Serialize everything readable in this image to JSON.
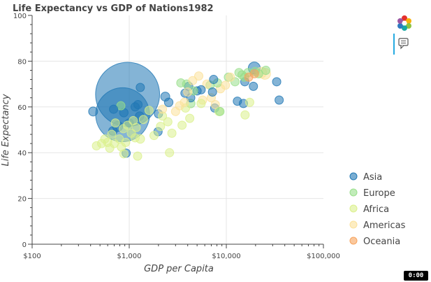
{
  "chart_data": {
    "type": "scatter",
    "title": "Life Expectancy vs GDP of Nations1982",
    "xlabel": "GDP per Capita",
    "ylabel": "Life Expectancy",
    "x_scale": "log",
    "xlim": [
      100,
      100000
    ],
    "ylim": [
      0,
      100
    ],
    "x_ticks": [
      100,
      1000,
      10000,
      100000
    ],
    "x_tick_labels": [
      "$100",
      "$1,000",
      "$10,000",
      "$100,000"
    ],
    "y_ticks": [
      0,
      20,
      40,
      60,
      80,
      100
    ],
    "y_tick_labels": [
      "0",
      "20",
      "40",
      "60",
      "80",
      "100"
    ],
    "grid": true,
    "legend_position": "right",
    "colors": {
      "Asia": "#1f77b4",
      "Europe": "#98df8a",
      "Africa": "#dbf08c",
      "Americas": "#fbe19a",
      "Oceania": "#f7a35c"
    },
    "series": [
      {
        "name": "Asia",
        "points": [
          {
            "gdp": 962,
            "life": 65.5,
            "pop": 1000
          },
          {
            "gdp": 855,
            "life": 56.6,
            "pop": 708
          },
          {
            "gdp": 425,
            "life": 58.0,
            "pop": 20
          },
          {
            "gdp": 690,
            "life": 59.0,
            "pop": 10
          },
          {
            "gdp": 760,
            "life": 51.5,
            "pop": 25
          },
          {
            "gdp": 680,
            "life": 49.5,
            "pop": 18
          },
          {
            "gdp": 930,
            "life": 39.8,
            "pop": 12
          },
          {
            "gdp": 880,
            "life": 57.5,
            "pop": 18
          },
          {
            "gdp": 1000,
            "life": 53.0,
            "pop": 12
          },
          {
            "gdp": 1150,
            "life": 60.0,
            "pop": 15
          },
          {
            "gdp": 1230,
            "life": 61.0,
            "pop": 14
          },
          {
            "gdp": 1280,
            "life": 56.0,
            "pop": 18
          },
          {
            "gdp": 1300,
            "life": 68.5,
            "pop": 15
          },
          {
            "gdp": 2000,
            "life": 57.0,
            "pop": 12
          },
          {
            "gdp": 1980,
            "life": 49.2,
            "pop": 12
          },
          {
            "gdp": 2350,
            "life": 64.5,
            "pop": 20
          },
          {
            "gdp": 2550,
            "life": 62.0,
            "pop": 18
          },
          {
            "gdp": 3750,
            "life": 66.0,
            "pop": 14
          },
          {
            "gdp": 4100,
            "life": 69.0,
            "pop": 15
          },
          {
            "gdp": 4300,
            "life": 64.0,
            "pop": 14
          },
          {
            "gdp": 5000,
            "life": 67.0,
            "pop": 15
          },
          {
            "gdp": 5500,
            "life": 67.5,
            "pop": 13
          },
          {
            "gdp": 7200,
            "life": 66.5,
            "pop": 10
          },
          {
            "gdp": 7600,
            "life": 59.5,
            "pop": 14
          },
          {
            "gdp": 7400,
            "life": 72.0,
            "pop": 12
          },
          {
            "gdp": 13000,
            "life": 62.5,
            "pop": 14
          },
          {
            "gdp": 15000,
            "life": 61.5,
            "pop": 12
          },
          {
            "gdp": 15500,
            "life": 71.0,
            "pop": 15
          },
          {
            "gdp": 19000,
            "life": 69.0,
            "pop": 12
          },
          {
            "gdp": 19400,
            "life": 77.0,
            "pop": 35
          },
          {
            "gdp": 33000,
            "life": 71.0,
            "pop": 10
          },
          {
            "gdp": 35000,
            "life": 63.0,
            "pop": 14
          }
        ]
      },
      {
        "name": "Europe",
        "points": [
          {
            "gdp": 820,
            "life": 60.5,
            "pop": 12
          },
          {
            "gdp": 3400,
            "life": 70.5,
            "pop": 12
          },
          {
            "gdp": 3900,
            "life": 70.0,
            "pop": 13
          },
          {
            "gdp": 4300,
            "life": 61.5,
            "pop": 18
          },
          {
            "gdp": 4600,
            "life": 67.0,
            "pop": 13
          },
          {
            "gdp": 6800,
            "life": 69.5,
            "pop": 15
          },
          {
            "gdp": 8100,
            "life": 70.5,
            "pop": 14
          },
          {
            "gdp": 8600,
            "life": 58.0,
            "pop": 12
          },
          {
            "gdp": 10500,
            "life": 73.0,
            "pop": 15
          },
          {
            "gdp": 12300,
            "life": 71.0,
            "pop": 14
          },
          {
            "gdp": 13500,
            "life": 75.0,
            "pop": 14
          },
          {
            "gdp": 14500,
            "life": 74.0,
            "pop": 14
          },
          {
            "gdp": 15400,
            "life": 73.0,
            "pop": 14
          },
          {
            "gdp": 16700,
            "life": 75.0,
            "pop": 14
          },
          {
            "gdp": 19800,
            "life": 75.5,
            "pop": 15
          },
          {
            "gdp": 21500,
            "life": 74.5,
            "pop": 15
          },
          {
            "gdp": 25500,
            "life": 76.0,
            "pop": 14
          }
        ]
      },
      {
        "name": "Africa",
        "points": [
          {
            "gdp": 460,
            "life": 43.0,
            "pop": 12
          },
          {
            "gdp": 520,
            "life": 44.0,
            "pop": 12
          },
          {
            "gdp": 560,
            "life": 46.0,
            "pop": 14
          },
          {
            "gdp": 600,
            "life": 44.5,
            "pop": 15
          },
          {
            "gdp": 630,
            "life": 42.0,
            "pop": 12
          },
          {
            "gdp": 660,
            "life": 48.0,
            "pop": 13
          },
          {
            "gdp": 700,
            "life": 44.0,
            "pop": 12
          },
          {
            "gdp": 720,
            "life": 53.0,
            "pop": 12
          },
          {
            "gdp": 790,
            "life": 46.0,
            "pop": 14
          },
          {
            "gdp": 830,
            "life": 42.5,
            "pop": 12
          },
          {
            "gdp": 870,
            "life": 50.5,
            "pop": 13
          },
          {
            "gdp": 880,
            "life": 39.5,
            "pop": 12
          },
          {
            "gdp": 920,
            "life": 44.5,
            "pop": 12
          },
          {
            "gdp": 960,
            "life": 52.0,
            "pop": 12
          },
          {
            "gdp": 1050,
            "life": 48.5,
            "pop": 13
          },
          {
            "gdp": 1100,
            "life": 54.0,
            "pop": 12
          },
          {
            "gdp": 1150,
            "life": 46.5,
            "pop": 14
          },
          {
            "gdp": 1180,
            "life": 51.0,
            "pop": 12
          },
          {
            "gdp": 1220,
            "life": 38.5,
            "pop": 12
          },
          {
            "gdp": 1300,
            "life": 46.0,
            "pop": 18
          },
          {
            "gdp": 1400,
            "life": 54.5,
            "pop": 13
          },
          {
            "gdp": 1600,
            "life": 58.5,
            "pop": 14
          },
          {
            "gdp": 1800,
            "life": 47.5,
            "pop": 12
          },
          {
            "gdp": 2100,
            "life": 51.5,
            "pop": 12
          },
          {
            "gdp": 2200,
            "life": 56.0,
            "pop": 12
          },
          {
            "gdp": 2500,
            "life": 53.5,
            "pop": 12
          },
          {
            "gdp": 2600,
            "life": 40.0,
            "pop": 12
          },
          {
            "gdp": 2750,
            "life": 48.5,
            "pop": 12
          },
          {
            "gdp": 3500,
            "life": 52.0,
            "pop": 12
          },
          {
            "gdp": 3800,
            "life": 59.5,
            "pop": 13
          },
          {
            "gdp": 4200,
            "life": 55.0,
            "pop": 12
          },
          {
            "gdp": 5500,
            "life": 61.5,
            "pop": 13
          },
          {
            "gdp": 8400,
            "life": 58.0,
            "pop": 13
          },
          {
            "gdp": 15600,
            "life": 56.5,
            "pop": 12
          },
          {
            "gdp": 17400,
            "life": 62.0,
            "pop": 12
          }
        ]
      },
      {
        "name": "Americas",
        "points": [
          {
            "gdp": 2200,
            "life": 59.0,
            "pop": 12
          },
          {
            "gdp": 3000,
            "life": 58.0,
            "pop": 13
          },
          {
            "gdp": 3300,
            "life": 60.5,
            "pop": 13
          },
          {
            "gdp": 3700,
            "life": 62.0,
            "pop": 12
          },
          {
            "gdp": 4000,
            "life": 66.5,
            "pop": 13
          },
          {
            "gdp": 4500,
            "life": 71.5,
            "pop": 12
          },
          {
            "gdp": 5200,
            "life": 73.5,
            "pop": 13
          },
          {
            "gdp": 5700,
            "life": 63.0,
            "pop": 14
          },
          {
            "gdp": 6300,
            "life": 70.0,
            "pop": 15
          },
          {
            "gdp": 7000,
            "life": 64.0,
            "pop": 13
          },
          {
            "gdp": 7700,
            "life": 61.0,
            "pop": 13
          },
          {
            "gdp": 8700,
            "life": 68.0,
            "pop": 18
          },
          {
            "gdp": 9800,
            "life": 69.5,
            "pop": 12
          },
          {
            "gdp": 11000,
            "life": 73.0,
            "pop": 13
          },
          {
            "gdp": 22900,
            "life": 75.0,
            "pop": 28
          },
          {
            "gdp": 25000,
            "life": 74.5,
            "pop": 30
          }
        ]
      },
      {
        "name": "Oceania",
        "points": [
          {
            "gdp": 17000,
            "life": 73.0,
            "pop": 8
          },
          {
            "gdp": 19500,
            "life": 74.5,
            "pop": 8
          }
        ]
      }
    ]
  },
  "toolbar": {
    "logo_icon": "bokeh-logo-icon",
    "hover_icon": "hover-tool-icon"
  },
  "player": {
    "label": "0:00"
  }
}
